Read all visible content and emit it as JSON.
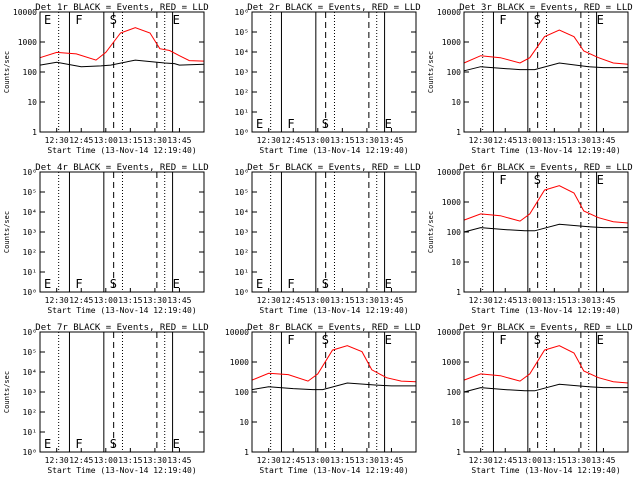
{
  "chart_data": [
    {
      "type": "line",
      "title": "Det 1r BLACK = Events, RED = LLD",
      "ylabel": "Counts/sec",
      "xlabel": "Start Time (13-Nov-14 12:19:40)",
      "ylog": true,
      "ylim": [
        1,
        10000
      ],
      "yticks": [
        "1",
        "10",
        "100",
        "1000",
        "10000"
      ],
      "xticks": [
        "12:30",
        "12:45",
        "13:00",
        "13:15",
        "13:30",
        "13:45"
      ],
      "markers": [
        "E",
        "F",
        "S",
        "",
        "E"
      ],
      "series": [
        {
          "color": "#000000",
          "points": [
            [
              12.33,
              170
            ],
            [
              12.5,
              210
            ],
            [
              12.75,
              150
            ],
            [
              12.95,
              160
            ],
            [
              13.05,
              170
            ],
            [
              13.3,
              250
            ],
            [
              13.6,
              200
            ],
            [
              13.7,
              190
            ],
            [
              13.75,
              170
            ],
            [
              14.0,
              180
            ]
          ]
        },
        {
          "color": "#ff0000",
          "points": [
            [
              12.33,
              300
            ],
            [
              12.5,
              450
            ],
            [
              12.7,
              400
            ],
            [
              12.9,
              250
            ],
            [
              13.0,
              450
            ],
            [
              13.15,
              2000
            ],
            [
              13.3,
              3000
            ],
            [
              13.45,
              2000
            ],
            [
              13.55,
              600
            ],
            [
              13.65,
              520
            ],
            [
              13.75,
              350
            ],
            [
              13.85,
              240
            ],
            [
              14.0,
              230
            ]
          ]
        }
      ]
    },
    {
      "type": "line",
      "title": "Det 2r BLACK = Events, RED = LLD",
      "ylabel": "",
      "xlabel": "Start Time (13-Nov-14 12:19:40)",
      "ylog": true,
      "ylim": [
        1,
        1000000
      ],
      "yticks": [
        "10⁰",
        "10¹",
        "10²",
        "10³",
        "10⁴",
        "10⁵",
        "10⁶"
      ],
      "xticks": [
        "12:30",
        "12:45",
        "13:00",
        "13:15",
        "13:30",
        "13:45"
      ],
      "markers": [
        "E",
        "F",
        "S",
        "",
        "E"
      ],
      "series": []
    },
    {
      "type": "line",
      "title": "Det 3r BLACK = Events, RED = LLD",
      "ylabel": "Counts/sec",
      "xlabel": "Start Time (13-Nov-14 12:19:40)",
      "ylog": true,
      "ylim": [
        1,
        10000
      ],
      "yticks": [
        "1",
        "10",
        "100",
        "1000",
        "10000"
      ],
      "xticks": [
        "12:30",
        "12:45",
        "13:00",
        "13:15",
        "13:30",
        "13:45"
      ],
      "markers": [
        "",
        "F",
        "S",
        "",
        "E"
      ],
      "series": [
        {
          "color": "#000000",
          "points": [
            [
              12.33,
              110
            ],
            [
              12.5,
              150
            ],
            [
              12.75,
              130
            ],
            [
              12.9,
              120
            ],
            [
              13.05,
              120
            ],
            [
              13.3,
              200
            ],
            [
              13.6,
              150
            ],
            [
              13.75,
              140
            ],
            [
              14.0,
              140
            ]
          ]
        },
        {
          "color": "#ff0000",
          "points": [
            [
              12.33,
              200
            ],
            [
              12.5,
              350
            ],
            [
              12.7,
              300
            ],
            [
              12.9,
              200
            ],
            [
              13.0,
              300
            ],
            [
              13.15,
              1500
            ],
            [
              13.3,
              2500
            ],
            [
              13.45,
              1500
            ],
            [
              13.55,
              500
            ],
            [
              13.7,
              300
            ],
            [
              13.85,
              200
            ],
            [
              14.0,
              180
            ]
          ]
        }
      ]
    },
    {
      "type": "line",
      "title": "Det 4r BLACK = Events, RED = LLD",
      "ylabel": "Counts/sec",
      "xlabel": "Start Time (13-Nov-14 12:19:40)",
      "ylog": true,
      "ylim": [
        1,
        1000000
      ],
      "yticks": [
        "10⁰",
        "10¹",
        "10²",
        "10³",
        "10⁴",
        "10⁵",
        "10⁶"
      ],
      "xticks": [
        "12:30",
        "12:45",
        "13:00",
        "13:15",
        "13:30",
        "13:45"
      ],
      "markers": [
        "E",
        "F",
        "S",
        "",
        "E"
      ],
      "series": []
    },
    {
      "type": "line",
      "title": "Det 5r BLACK = Events, RED = LLD",
      "ylabel": "",
      "xlabel": "Start Time (13-Nov-14 12:19:40)",
      "ylog": true,
      "ylim": [
        1,
        1000000
      ],
      "yticks": [
        "10⁰",
        "10¹",
        "10²",
        "10³",
        "10⁴",
        "10⁵",
        "10⁶"
      ],
      "xticks": [
        "12:30",
        "12:45",
        "13:00",
        "13:15",
        "13:30",
        "13:45"
      ],
      "markers": [
        "E",
        "F",
        "S",
        "",
        "E"
      ],
      "series": []
    },
    {
      "type": "line",
      "title": "Det 6r BLACK = Events, RED = LLD",
      "ylabel": "Counts/sec",
      "xlabel": "Start Time (13-Nov-14 12:19:40)",
      "ylog": true,
      "ylim": [
        1,
        10000
      ],
      "yticks": [
        "1",
        "10",
        "100",
        "1000",
        "10000"
      ],
      "xticks": [
        "12:30",
        "12:45",
        "13:00",
        "13:15",
        "13:30",
        "13:45"
      ],
      "markers": [
        "",
        "F",
        "S",
        "",
        "E"
      ],
      "series": [
        {
          "color": "#000000",
          "points": [
            [
              12.33,
              100
            ],
            [
              12.5,
              140
            ],
            [
              12.75,
              120
            ],
            [
              12.95,
              110
            ],
            [
              13.05,
              110
            ],
            [
              13.3,
              180
            ],
            [
              13.6,
              150
            ],
            [
              13.75,
              140
            ],
            [
              14.0,
              140
            ]
          ]
        },
        {
          "color": "#ff0000",
          "points": [
            [
              12.33,
              250
            ],
            [
              12.5,
              400
            ],
            [
              12.7,
              350
            ],
            [
              12.9,
              230
            ],
            [
              13.0,
              400
            ],
            [
              13.15,
              2500
            ],
            [
              13.3,
              3500
            ],
            [
              13.45,
              2000
            ],
            [
              13.55,
              500
            ],
            [
              13.7,
              300
            ],
            [
              13.85,
              220
            ],
            [
              14.0,
              200
            ]
          ]
        }
      ]
    },
    {
      "type": "line",
      "title": "Det 7r BLACK = Events, RED = LLD",
      "ylabel": "Counts/sec",
      "xlabel": "Start Time (13-Nov-14 12:19:40)",
      "ylog": true,
      "ylim": [
        1,
        1000000
      ],
      "yticks": [
        "10⁰",
        "10¹",
        "10²",
        "10³",
        "10⁴",
        "10⁵",
        "10⁶"
      ],
      "xticks": [
        "12:30",
        "12:45",
        "13:00",
        "13:15",
        "13:30",
        "13:45"
      ],
      "markers": [
        "E",
        "F",
        "S",
        "",
        "E"
      ],
      "series": []
    },
    {
      "type": "line",
      "title": "Det 8r BLACK = Events, RED = LLD",
      "ylabel": "",
      "xlabel": "Start Time (13-Nov-14 12:19:40)",
      "ylog": true,
      "ylim": [
        1,
        10000
      ],
      "yticks": [
        "1",
        "10",
        "100",
        "1000",
        "10000"
      ],
      "xticks": [
        "12:30",
        "12:45",
        "13:00",
        "13:15",
        "13:30",
        "13:45"
      ],
      "markers": [
        "",
        "F",
        "S",
        "",
        "E"
      ],
      "series": [
        {
          "color": "#000000",
          "points": [
            [
              12.33,
              120
            ],
            [
              12.5,
              150
            ],
            [
              12.75,
              130
            ],
            [
              12.95,
              120
            ],
            [
              13.05,
              120
            ],
            [
              13.3,
              200
            ],
            [
              13.6,
              170
            ],
            [
              13.75,
              160
            ],
            [
              14.0,
              160
            ]
          ]
        },
        {
          "color": "#ff0000",
          "points": [
            [
              12.33,
              250
            ],
            [
              12.5,
              420
            ],
            [
              12.7,
              380
            ],
            [
              12.9,
              230
            ],
            [
              13.0,
              400
            ],
            [
              13.15,
              2500
            ],
            [
              13.3,
              3500
            ],
            [
              13.45,
              2200
            ],
            [
              13.55,
              550
            ],
            [
              13.7,
              300
            ],
            [
              13.85,
              230
            ],
            [
              14.0,
              220
            ]
          ]
        }
      ]
    },
    {
      "type": "line",
      "title": "Det 9r BLACK = Events, RED = LLD",
      "ylabel": "",
      "xlabel": "Start Time (13-Nov-14 12:19:40)",
      "ylog": true,
      "ylim": [
        1,
        10000
      ],
      "yticks": [
        "1",
        "10",
        "100",
        "1000",
        "10000"
      ],
      "xticks": [
        "12:30",
        "12:45",
        "13:00",
        "13:15",
        "13:30",
        "13:45"
      ],
      "markers": [
        "",
        "F",
        "S",
        "",
        "E"
      ],
      "series": [
        {
          "color": "#000000",
          "points": [
            [
              12.33,
              100
            ],
            [
              12.5,
              140
            ],
            [
              12.75,
              120
            ],
            [
              12.95,
              110
            ],
            [
              13.05,
              110
            ],
            [
              13.3,
              180
            ],
            [
              13.6,
              150
            ],
            [
              13.75,
              140
            ],
            [
              14.0,
              140
            ]
          ]
        },
        {
          "color": "#ff0000",
          "points": [
            [
              12.33,
              250
            ],
            [
              12.5,
              400
            ],
            [
              12.7,
              350
            ],
            [
              12.9,
              230
            ],
            [
              13.0,
              400
            ],
            [
              13.15,
              2500
            ],
            [
              13.3,
              3500
            ],
            [
              13.45,
              2000
            ],
            [
              13.55,
              500
            ],
            [
              13.7,
              300
            ],
            [
              13.85,
              220
            ],
            [
              14.0,
              200
            ]
          ]
        }
      ]
    }
  ]
}
